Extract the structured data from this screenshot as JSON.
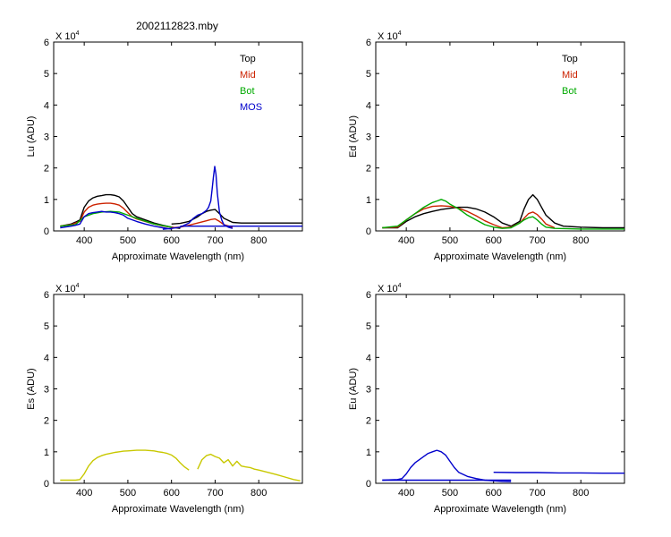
{
  "figure": {
    "title": "2002112823.mby"
  },
  "chart_data": [
    {
      "type": "line",
      "ylabel": "Lu (ADU)",
      "xlabel": "Approximate Wavelength (nm)",
      "xlim": [
        330,
        900
      ],
      "ylim": [
        0,
        6
      ],
      "y_multiplier": "X 10^4",
      "xticks": [
        400,
        500,
        600,
        700,
        800
      ],
      "yticks": [
        0,
        1,
        2,
        3,
        4,
        5,
        6
      ],
      "legend": "top-right",
      "series": [
        {
          "name": "Top",
          "color": "#000000",
          "segments": [
            {
              "x": [
                345,
                370,
                380,
                390,
                400,
                410,
                420,
                430,
                440,
                450,
                460,
                470,
                480,
                490,
                500,
                510,
                520,
                540,
                560,
                580,
                600,
                620
              ],
              "y": [
                0.15,
                0.22,
                0.28,
                0.35,
                0.75,
                0.95,
                1.05,
                1.1,
                1.12,
                1.15,
                1.15,
                1.13,
                1.08,
                0.95,
                0.75,
                0.55,
                0.45,
                0.35,
                0.25,
                0.18,
                0.12,
                0.08
              ]
            },
            {
              "x": [
                600,
                620,
                640,
                660,
                670,
                680,
                690,
                700,
                710,
                720,
                740,
                760,
                800,
                850,
                900
              ],
              "y": [
                0.22,
                0.24,
                0.3,
                0.45,
                0.55,
                0.62,
                0.66,
                0.68,
                0.55,
                0.4,
                0.27,
                0.25,
                0.25,
                0.25,
                0.25
              ]
            }
          ]
        },
        {
          "name": "Mid",
          "color": "#cc2200",
          "segments": [
            {
              "x": [
                345,
                370,
                380,
                390,
                400,
                410,
                420,
                430,
                440,
                450,
                460,
                470,
                480,
                490,
                500,
                510,
                520,
                540,
                560,
                580,
                600
              ],
              "y": [
                0.15,
                0.2,
                0.25,
                0.3,
                0.6,
                0.75,
                0.82,
                0.85,
                0.87,
                0.88,
                0.88,
                0.86,
                0.82,
                0.72,
                0.58,
                0.45,
                0.38,
                0.3,
                0.22,
                0.16,
                0.12
              ]
            },
            {
              "x": [
                600,
                620,
                640,
                660,
                680,
                690,
                700,
                710,
                720,
                740
              ],
              "y": [
                0.1,
                0.12,
                0.18,
                0.25,
                0.32,
                0.36,
                0.38,
                0.3,
                0.2,
                0.12
              ]
            }
          ]
        },
        {
          "name": "Bot",
          "color": "#00aa00",
          "segments": [
            {
              "x": [
                345,
                380,
                400,
                420,
                440,
                460,
                480,
                500,
                520,
                560,
                600
              ],
              "y": [
                0.15,
                0.2,
                0.45,
                0.55,
                0.6,
                0.62,
                0.6,
                0.5,
                0.4,
                0.22,
                0.12
              ]
            }
          ]
        },
        {
          "name": "MOS",
          "color": "#0000cc",
          "segments": [
            {
              "x": [
                345,
                370,
                380,
                390,
                400,
                410,
                420,
                430,
                440,
                450,
                460,
                470,
                480,
                490,
                500,
                520,
                540,
                560,
                580,
                600
              ],
              "y": [
                0.1,
                0.15,
                0.18,
                0.22,
                0.45,
                0.55,
                0.58,
                0.6,
                0.62,
                0.6,
                0.6,
                0.58,
                0.55,
                0.5,
                0.4,
                0.3,
                0.22,
                0.15,
                0.1,
                0.06
              ]
            },
            {
              "x": [
                580,
                600,
                620,
                640,
                650,
                660,
                670,
                680,
                685,
                690,
                693,
                696,
                699,
                702,
                705,
                710,
                715,
                720,
                730,
                740
              ],
              "y": [
                0.05,
                0.08,
                0.12,
                0.25,
                0.4,
                0.5,
                0.55,
                0.65,
                0.75,
                0.95,
                1.3,
                1.7,
                2.05,
                1.8,
                1.2,
                0.6,
                0.35,
                0.2,
                0.12,
                0.08
              ]
            },
            {
              "x": [
                620,
                700,
                800,
                900
              ],
              "y": [
                0.15,
                0.15,
                0.15,
                0.15
              ]
            }
          ]
        }
      ]
    },
    {
      "type": "line",
      "ylabel": "Ed  (ADU)",
      "xlabel": "Approximate Wavelength (nm)",
      "xlim": [
        330,
        900
      ],
      "ylim": [
        0,
        6
      ],
      "y_multiplier": "X 10^4",
      "xticks": [
        400,
        500,
        600,
        700,
        800
      ],
      "yticks": [
        0,
        1,
        2,
        3,
        4,
        5,
        6
      ],
      "legend": "top-right",
      "series": [
        {
          "name": "Top",
          "color": "#000000",
          "segments": [
            {
              "x": [
                345,
                380,
                400,
                420,
                440,
                460,
                480,
                500,
                520,
                540,
                560,
                580,
                600,
                620,
                640,
                660,
                670,
                680,
                690,
                700,
                710,
                720,
                740,
                760,
                800,
                850,
                900
              ],
              "y": [
                0.1,
                0.1,
                0.3,
                0.45,
                0.55,
                0.62,
                0.68,
                0.72,
                0.75,
                0.75,
                0.7,
                0.6,
                0.45,
                0.25,
                0.15,
                0.3,
                0.7,
                1.0,
                1.15,
                1.0,
                0.75,
                0.5,
                0.25,
                0.15,
                0.12,
                0.1,
                0.1
              ]
            }
          ]
        },
        {
          "name": "Mid",
          "color": "#cc2200",
          "segments": [
            {
              "x": [
                345,
                380,
                400,
                420,
                440,
                460,
                480,
                500,
                520,
                540,
                560,
                580,
                600,
                620,
                640,
                660,
                670,
                680,
                690,
                700,
                710,
                720,
                740
              ],
              "y": [
                0.1,
                0.12,
                0.35,
                0.55,
                0.7,
                0.78,
                0.8,
                0.78,
                0.72,
                0.62,
                0.48,
                0.32,
                0.2,
                0.1,
                0.12,
                0.25,
                0.4,
                0.55,
                0.6,
                0.52,
                0.38,
                0.22,
                0.1
              ]
            }
          ]
        },
        {
          "name": "Bot",
          "color": "#00aa00",
          "segments": [
            {
              "x": [
                345,
                380,
                400,
                420,
                440,
                460,
                470,
                480,
                490,
                500,
                520,
                540,
                560,
                580,
                600,
                620,
                640,
                660,
                670,
                680,
                690,
                700,
                710,
                720,
                740,
                800,
                900
              ],
              "y": [
                0.1,
                0.15,
                0.35,
                0.55,
                0.75,
                0.9,
                0.95,
                1.0,
                0.95,
                0.85,
                0.7,
                0.5,
                0.35,
                0.2,
                0.12,
                0.08,
                0.1,
                0.25,
                0.35,
                0.42,
                0.45,
                0.35,
                0.22,
                0.12,
                0.08,
                0.06,
                0.06
              ]
            }
          ]
        }
      ]
    },
    {
      "type": "line",
      "ylabel": "Es  (ADU)",
      "xlabel": "Approximate Wavelength (nm)",
      "xlim": [
        330,
        900
      ],
      "ylim": [
        0,
        6
      ],
      "y_multiplier": "X 10^4",
      "xticks": [
        400,
        500,
        600,
        700,
        800
      ],
      "yticks": [
        0,
        1,
        2,
        3,
        4,
        5,
        6
      ],
      "series": [
        {
          "color": "#c8c800",
          "segments": [
            {
              "x": [
                345,
                380,
                390,
                400,
                410,
                420,
                430,
                440,
                450,
                460,
                470,
                480,
                490,
                500,
                510,
                520,
                530,
                540,
                550,
                560,
                570,
                580,
                590,
                600,
                610,
                620,
                630,
                640
              ],
              "y": [
                0.1,
                0.1,
                0.12,
                0.3,
                0.55,
                0.72,
                0.82,
                0.88,
                0.92,
                0.95,
                0.98,
                1.0,
                1.02,
                1.03,
                1.04,
                1.05,
                1.05,
                1.05,
                1.04,
                1.03,
                1.0,
                0.98,
                0.95,
                0.9,
                0.8,
                0.65,
                0.52,
                0.42
              ]
            },
            {
              "x": [
                660,
                670,
                680,
                690,
                700,
                710,
                720,
                730,
                740,
                750,
                760,
                770,
                780,
                790,
                800,
                820,
                840,
                860,
                880,
                895
              ],
              "y": [
                0.45,
                0.75,
                0.88,
                0.92,
                0.85,
                0.8,
                0.65,
                0.75,
                0.55,
                0.7,
                0.55,
                0.52,
                0.5,
                0.45,
                0.42,
                0.35,
                0.28,
                0.2,
                0.12,
                0.08
              ]
            }
          ]
        }
      ]
    },
    {
      "type": "line",
      "ylabel": "Eu  (ADU)",
      "xlabel": "Approximate Wavelength (nm)",
      "xlim": [
        330,
        900
      ],
      "ylim": [
        0,
        6
      ],
      "y_multiplier": "X 10^4",
      "xticks": [
        400,
        500,
        600,
        700,
        800
      ],
      "yticks": [
        0,
        1,
        2,
        3,
        4,
        5,
        6
      ],
      "series": [
        {
          "color": "#0000cc",
          "segments": [
            {
              "x": [
                345,
                380,
                390,
                400,
                410,
                420,
                430,
                440,
                450,
                460,
                470,
                480,
                490,
                500,
                510,
                520,
                540,
                560,
                580,
                600,
                620,
                640
              ],
              "y": [
                0.1,
                0.12,
                0.15,
                0.3,
                0.5,
                0.65,
                0.75,
                0.85,
                0.95,
                1.0,
                1.05,
                1.0,
                0.9,
                0.7,
                0.5,
                0.35,
                0.22,
                0.15,
                0.1,
                0.08,
                0.06,
                0.05
              ]
            },
            {
              "x": [
                345,
                400,
                500,
                600,
                640
              ],
              "y": [
                0.1,
                0.1,
                0.1,
                0.1,
                0.1
              ]
            },
            {
              "x": [
                600,
                650,
                700,
                750,
                800,
                850,
                900
              ],
              "y": [
                0.35,
                0.34,
                0.34,
                0.33,
                0.33,
                0.32,
                0.32
              ]
            }
          ]
        }
      ]
    }
  ]
}
